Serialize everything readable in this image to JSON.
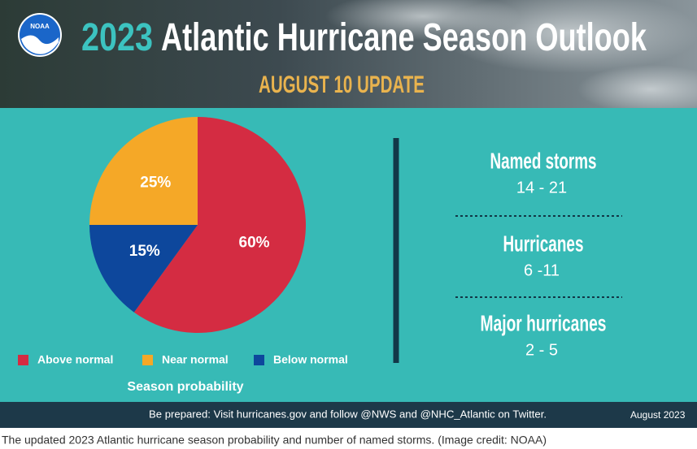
{
  "header": {
    "logo": "NOAA",
    "title_year": "2023",
    "title": "Atlantic Hurricane Season Outlook",
    "subtitle": "AUGUST 10 UPDATE"
  },
  "chart_data": {
    "type": "pie",
    "title": "Season probability",
    "categories": [
      "Above normal",
      "Near normal",
      "Below normal"
    ],
    "values": [
      60,
      25,
      15
    ],
    "value_labels": [
      "60%",
      "25%",
      "15%"
    ],
    "colors": [
      "#d42c42",
      "#f5a827",
      "#0d479c"
    ]
  },
  "outlook": [
    {
      "label": "Named storms",
      "range": "14 - 21"
    },
    {
      "label": "Hurricanes",
      "range": "6 -11"
    },
    {
      "label": "Major hurricanes",
      "range": "2 - 5"
    }
  ],
  "footer": {
    "note": "Be prepared: Visit hurricanes.gov and follow @NWS and @NHC_Atlantic on Twitter.",
    "date": "August 2023"
  },
  "caption": "The updated 2023 Atlantic hurricane season probability and number of named storms. (Image credit: NOAA)"
}
